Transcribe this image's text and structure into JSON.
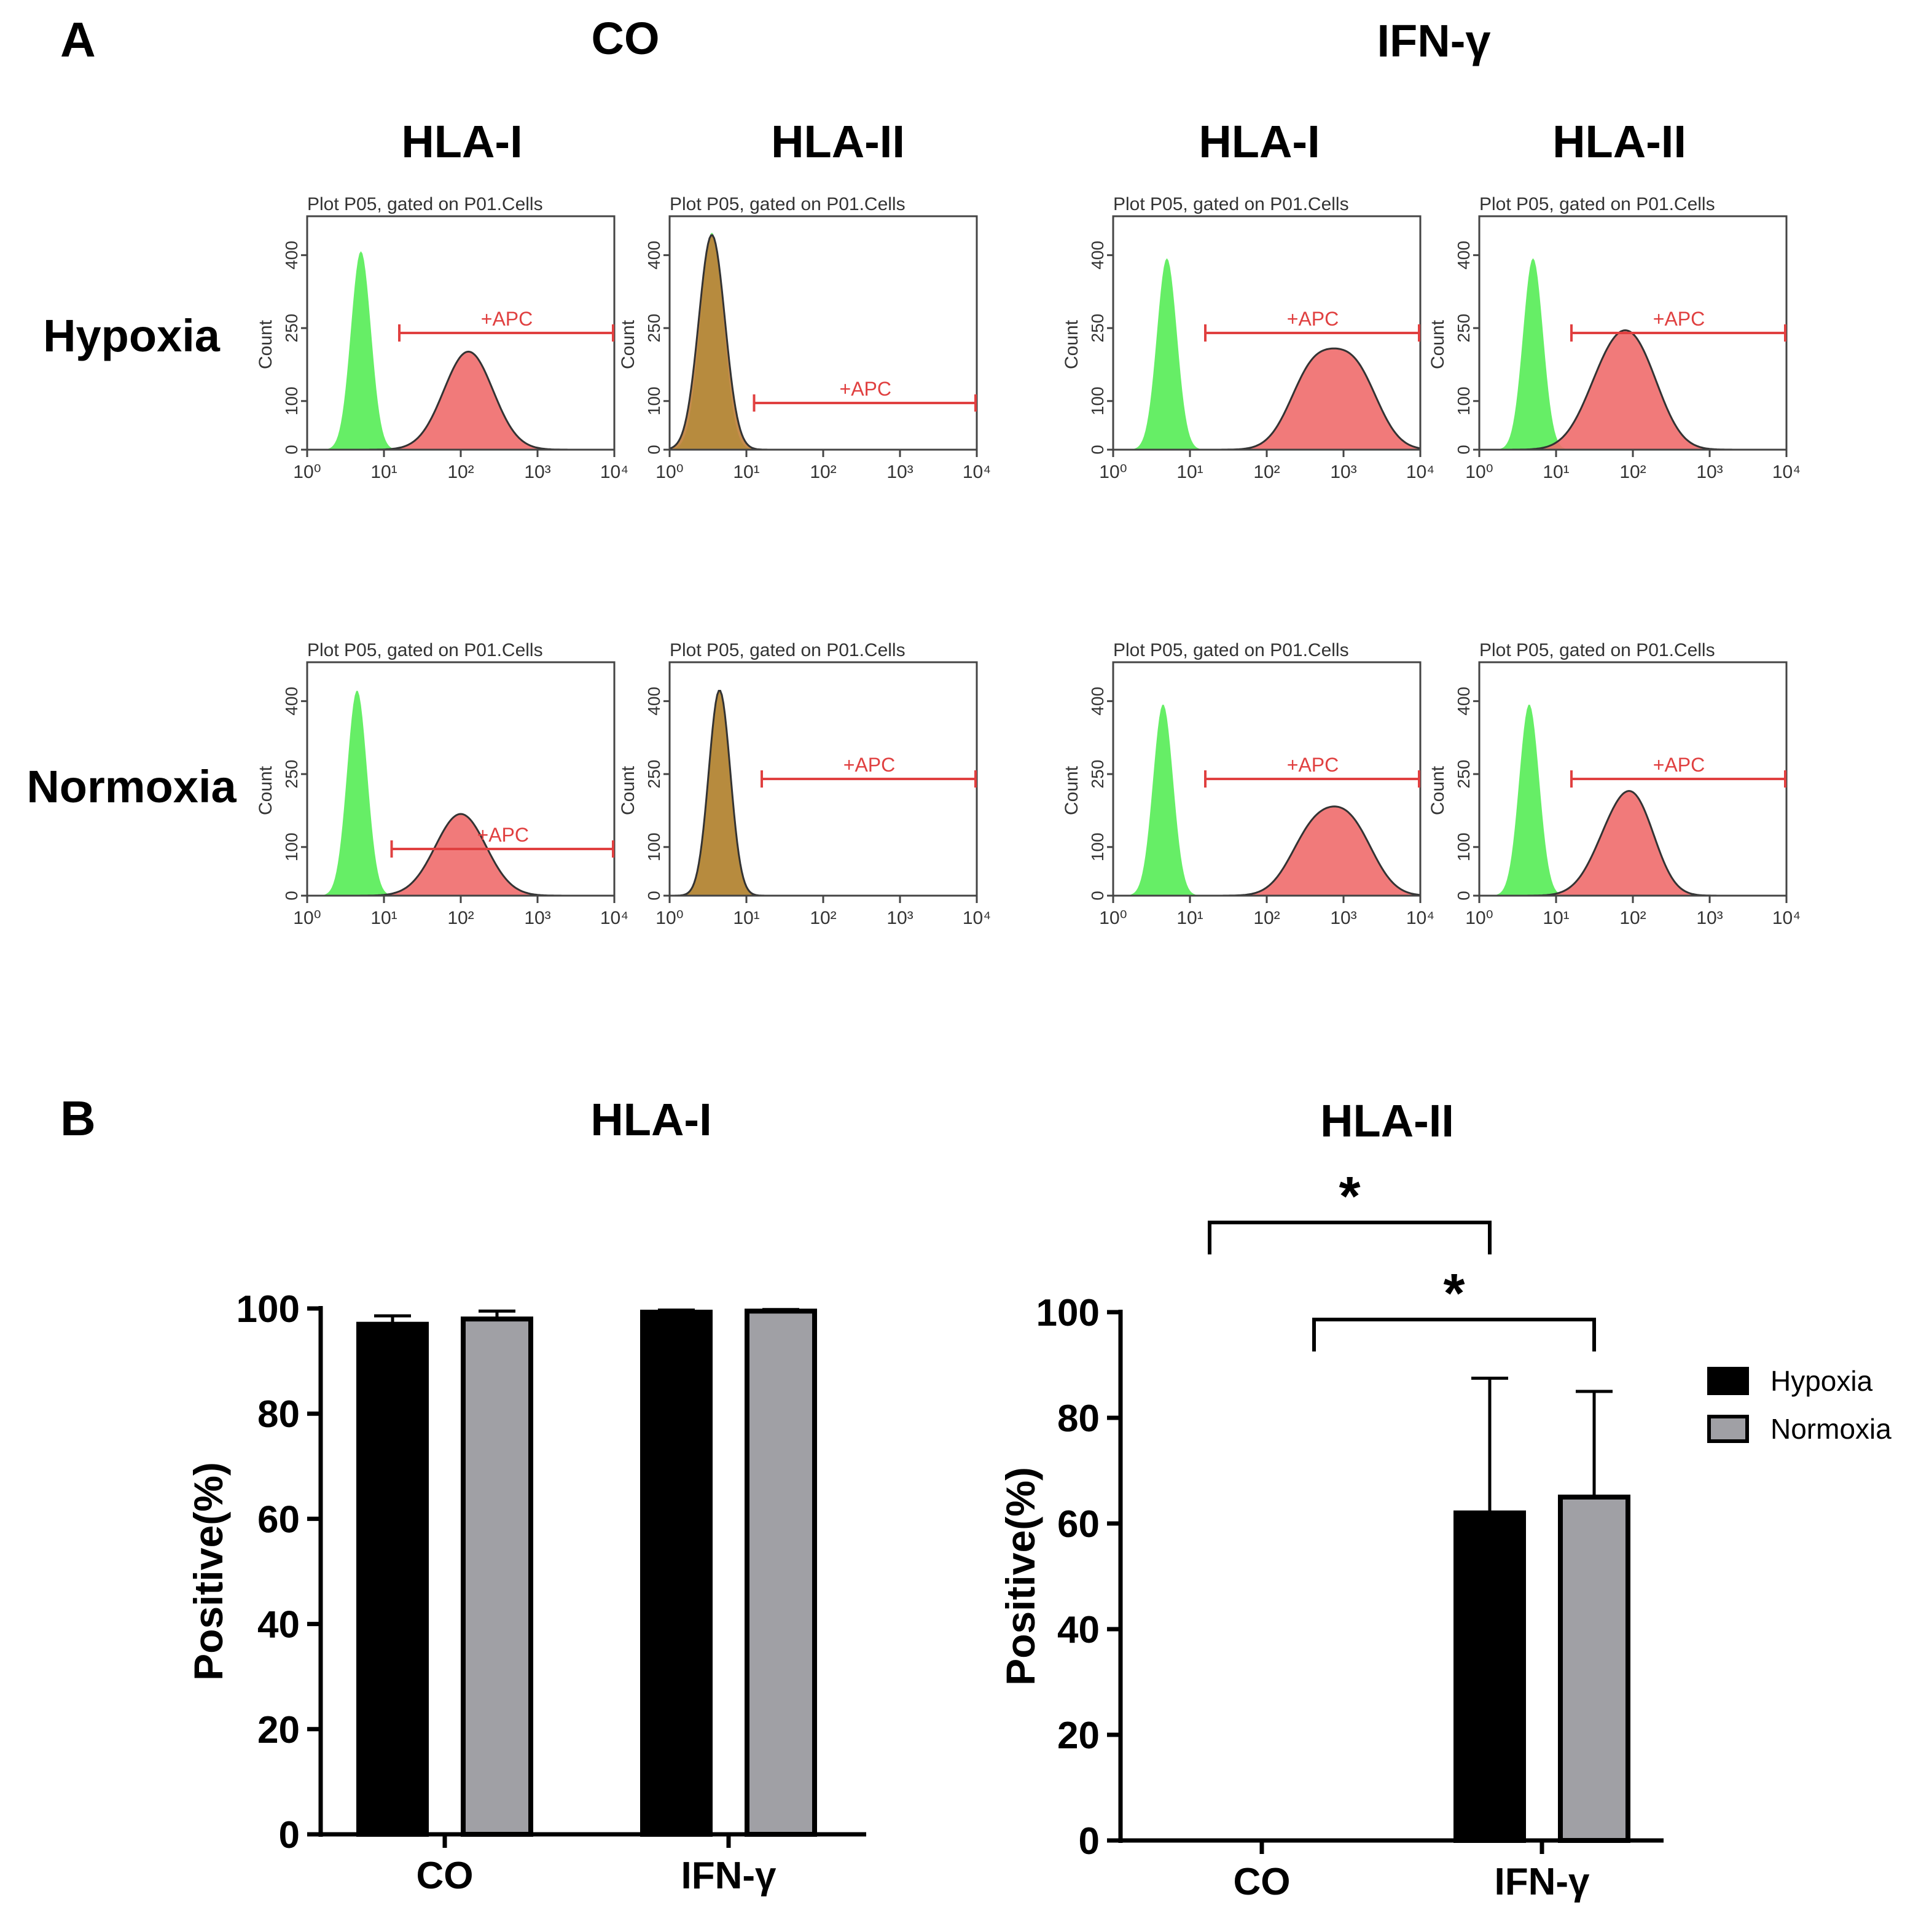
{
  "panel_a": {
    "label": "A",
    "group_labels": [
      "CO",
      "IFN-γ"
    ],
    "marker_labels": [
      "HLA-I",
      "HLA-II",
      "HLA-I",
      "HLA-II"
    ],
    "row_labels": [
      "Hypoxia",
      "Normoxia"
    ],
    "plot_title": "Plot P05, gated on P01.Cells",
    "y_axis_label": "Count",
    "gate_label": "+APC",
    "x_ticks": [
      "10⁰",
      "10¹",
      "10²",
      "10³",
      "10⁴"
    ],
    "y_ticks": [
      "0",
      "100",
      "250",
      "400"
    ]
  },
  "chart_data": [
    {
      "type": "bar",
      "panel": "B",
      "title": "HLA-I",
      "categories": [
        "CO",
        "IFN-γ"
      ],
      "series": [
        {
          "name": "Hypoxia",
          "values": [
            97,
            99.3
          ],
          "errors": [
            1.6,
            0.4
          ]
        },
        {
          "name": "Normoxia",
          "values": [
            98,
            99.5
          ],
          "errors": [
            1.5,
            0.3
          ]
        }
      ],
      "xlabel": "",
      "ylabel": "Positive(%)",
      "ylim": [
        0,
        100
      ],
      "yticks": [
        0,
        20,
        40,
        60,
        80,
        100
      ],
      "colors": [
        "#000000",
        "#a0a0a5"
      ]
    },
    {
      "type": "bar",
      "panel": "B",
      "title": "HLA-II",
      "categories": [
        "CO",
        "IFN-γ"
      ],
      "series": [
        {
          "name": "Hypoxia",
          "values": [
            0,
            62
          ],
          "errors": [
            0,
            25.5
          ]
        },
        {
          "name": "Normoxia",
          "values": [
            0,
            65
          ],
          "errors": [
            0,
            20
          ]
        }
      ],
      "xlabel": "",
      "ylabel": "Positive(%)",
      "ylim": [
        0,
        100
      ],
      "yticks": [
        0,
        20,
        40,
        60,
        80,
        100
      ],
      "legend": [
        "Hypoxia",
        "Normoxia"
      ],
      "significance": [
        {
          "label": "*",
          "from": "CO Hypoxia",
          "to": "IFN-γ Hypoxia"
        },
        {
          "label": "*",
          "from": "CO Normoxia",
          "to": "IFN-γ Normoxia"
        }
      ],
      "colors": [
        "#000000",
        "#a0a0a5"
      ]
    }
  ],
  "panel_b": {
    "label": "B"
  },
  "colors": {
    "green": "#66ee66",
    "red": "#f06b6b",
    "gate": "#e04040",
    "overlap": "#c0803a"
  }
}
